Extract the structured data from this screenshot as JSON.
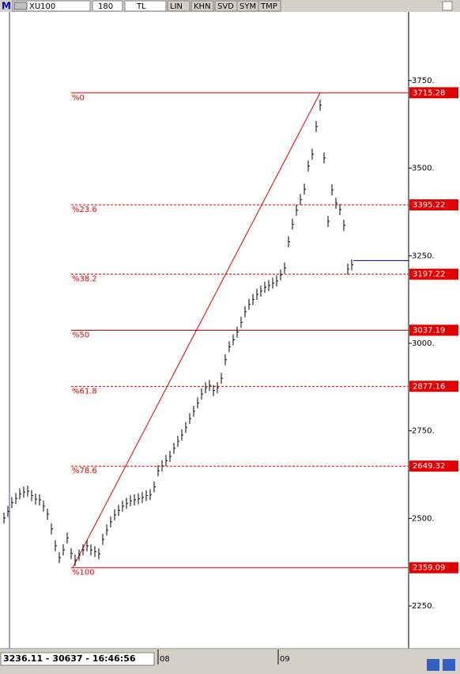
{
  "toolbar": {
    "menu": "M",
    "symbol": "XU100",
    "period": "180",
    "currency": "TL",
    "buttons": [
      "LIN",
      "KHN",
      "SVD",
      "SYM",
      "TMP"
    ]
  },
  "status": "3236.11 - 30637 - 16:46:56",
  "chart_data": {
    "type": "price",
    "values": [
      2501,
      2520,
      2545,
      2557,
      2570,
      2575,
      2578,
      2565,
      2555,
      2553,
      2535,
      2512,
      2470,
      2422,
      2388,
      2410,
      2444,
      2400,
      2381,
      2395,
      2410,
      2422,
      2410,
      2405,
      2399,
      2440,
      2467,
      2490,
      2510,
      2523,
      2535,
      2543,
      2550,
      2553,
      2556,
      2560,
      2565,
      2568,
      2590,
      2636,
      2650,
      2665,
      2677,
      2700,
      2720,
      2738,
      2760,
      2785,
      2806,
      2830,
      2855,
      2873,
      2880,
      2865,
      2873,
      2900,
      2953,
      2990,
      3010,
      3032,
      3060,
      3090,
      3111,
      3125,
      3140,
      3149,
      3160,
      3165,
      3172,
      3178,
      3195,
      3215,
      3290,
      3340,
      3380,
      3410,
      3440,
      3506,
      3540,
      3619,
      3680,
      3529,
      3348,
      3438,
      3400,
      3382,
      3337,
      3212,
      3224
    ],
    "color": "#000000",
    "ylim": [
      2128,
      3944
    ],
    "yticks": [
      {
        "value": 2250,
        "label": "2250."
      },
      {
        "value": 2500,
        "label": "2500."
      },
      {
        "value": 2750,
        "label": "2750."
      },
      {
        "value": 3000,
        "label": "3000."
      },
      {
        "value": 3250,
        "label": "3250."
      },
      {
        "value": 3500,
        "label": "3500."
      },
      {
        "value": 3750,
        "label": "3750."
      }
    ],
    "time_labels": [
      "08",
      "09"
    ],
    "fibonacci": {
      "labels": [
        "%0",
        "%23.6",
        "%38.2",
        "%50",
        "%61.8",
        "%78.6",
        "%100"
      ],
      "values": [
        3715.28,
        3395.22,
        3197.22,
        3037.19,
        2877.16,
        2649.32,
        2359.09
      ],
      "dashed": [
        false,
        true,
        true,
        false,
        true,
        true,
        false
      ],
      "color": "#e00000"
    },
    "last_price": 3236.11,
    "last_price_color": "#000080"
  }
}
